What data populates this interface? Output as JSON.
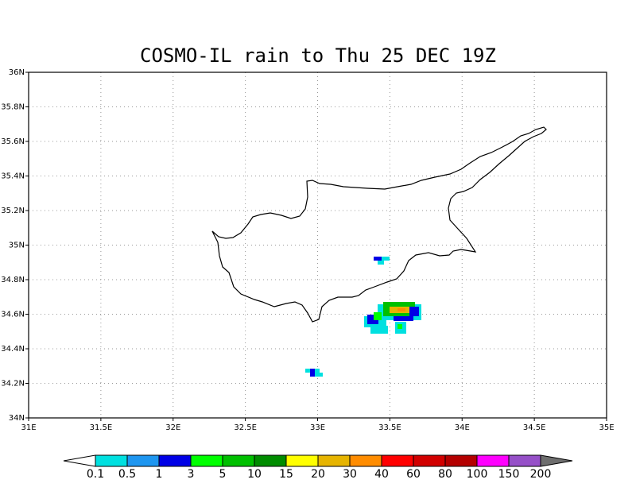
{
  "title": "COSMO-IL rain to Thu 25 DEC 19Z",
  "map": {
    "xlim": [
      31,
      35
    ],
    "ylim": [
      34,
      36
    ],
    "grid": true,
    "xticks": [
      {
        "value": 31,
        "label": "31E"
      },
      {
        "value": 31.5,
        "label": "31.5E"
      },
      {
        "value": 32,
        "label": "32E"
      },
      {
        "value": 32.5,
        "label": "32.5E"
      },
      {
        "value": 33,
        "label": "33E"
      },
      {
        "value": 33.5,
        "label": "33.5E"
      },
      {
        "value": 34,
        "label": "34E"
      },
      {
        "value": 34.5,
        "label": "34.5E"
      },
      {
        "value": 35,
        "label": "35E"
      }
    ],
    "yticks": [
      {
        "value": 34,
        "label": "34N"
      },
      {
        "value": 34.2,
        "label": "34.2N"
      },
      {
        "value": 34.4,
        "label": "34.4N"
      },
      {
        "value": 34.6,
        "label": "34.6N"
      },
      {
        "value": 34.8,
        "label": "34.8N"
      },
      {
        "value": 35,
        "label": "35N"
      },
      {
        "value": 35.2,
        "label": "35.2N"
      },
      {
        "value": 35.4,
        "label": "35.4N"
      },
      {
        "value": 35.6,
        "label": "35.6N"
      },
      {
        "value": 35.8,
        "label": "35.8N"
      },
      {
        "value": 36,
        "label": "36N"
      }
    ]
  },
  "colorbar": {
    "levels": [
      0.1,
      0.5,
      1,
      3,
      5,
      10,
      15,
      20,
      30,
      40,
      60,
      80,
      100,
      150,
      200
    ],
    "colors": [
      "#ffffff",
      "#00e0e0",
      "#1e96f0",
      "#0000e6",
      "#00ff00",
      "#00c000",
      "#008c00",
      "#ffff00",
      "#e6b400",
      "#ff8c00",
      "#ff0000",
      "#d20000",
      "#b40000",
      "#ff00ff",
      "#9650c8",
      "#6e6e6e"
    ]
  }
}
